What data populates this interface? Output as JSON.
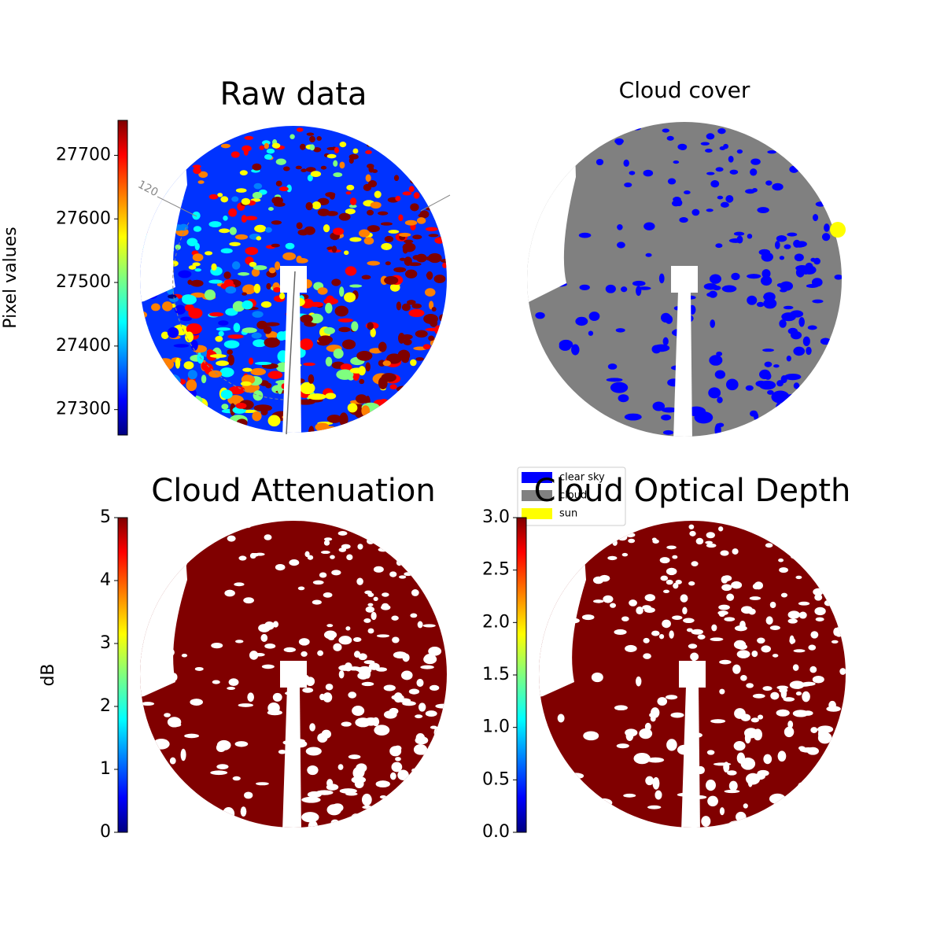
{
  "chart_data": [
    {
      "type": "image",
      "title": "Raw data",
      "colormap": "jet",
      "colorbar_label": "Pixel values",
      "ylim": [
        27260,
        27755
      ],
      "yticks": [
        27300,
        27400,
        27500,
        27600,
        27700
      ],
      "annotations": [
        "120"
      ]
    },
    {
      "type": "image",
      "title": "Cloud cover",
      "legend": [
        {
          "name": "clear sky",
          "color": "#0000ff"
        },
        {
          "name": "cloud",
          "color": "#808080"
        },
        {
          "name": "sun",
          "color": "#ffff00"
        }
      ]
    },
    {
      "type": "image",
      "title": "Cloud Attenuation",
      "colormap": "jet",
      "colorbar_label": "dB",
      "ylim": [
        0,
        5
      ],
      "yticks": [
        0,
        1,
        2,
        3,
        4,
        5
      ]
    },
    {
      "type": "image",
      "title": "Cloud Optical Depth",
      "colormap": "jet",
      "ylim": [
        0,
        3
      ],
      "yticks": [
        {
          "value": 0,
          "label": "0.0"
        },
        {
          "value": 0.5,
          "label": "0.5"
        },
        {
          "value": 1,
          "label": "1.0"
        },
        {
          "value": 1.5,
          "label": "1.5"
        },
        {
          "value": 2,
          "label": "2.0"
        },
        {
          "value": 2.5,
          "label": "2.5"
        },
        {
          "value": 3,
          "label": "3.0"
        }
      ]
    }
  ]
}
